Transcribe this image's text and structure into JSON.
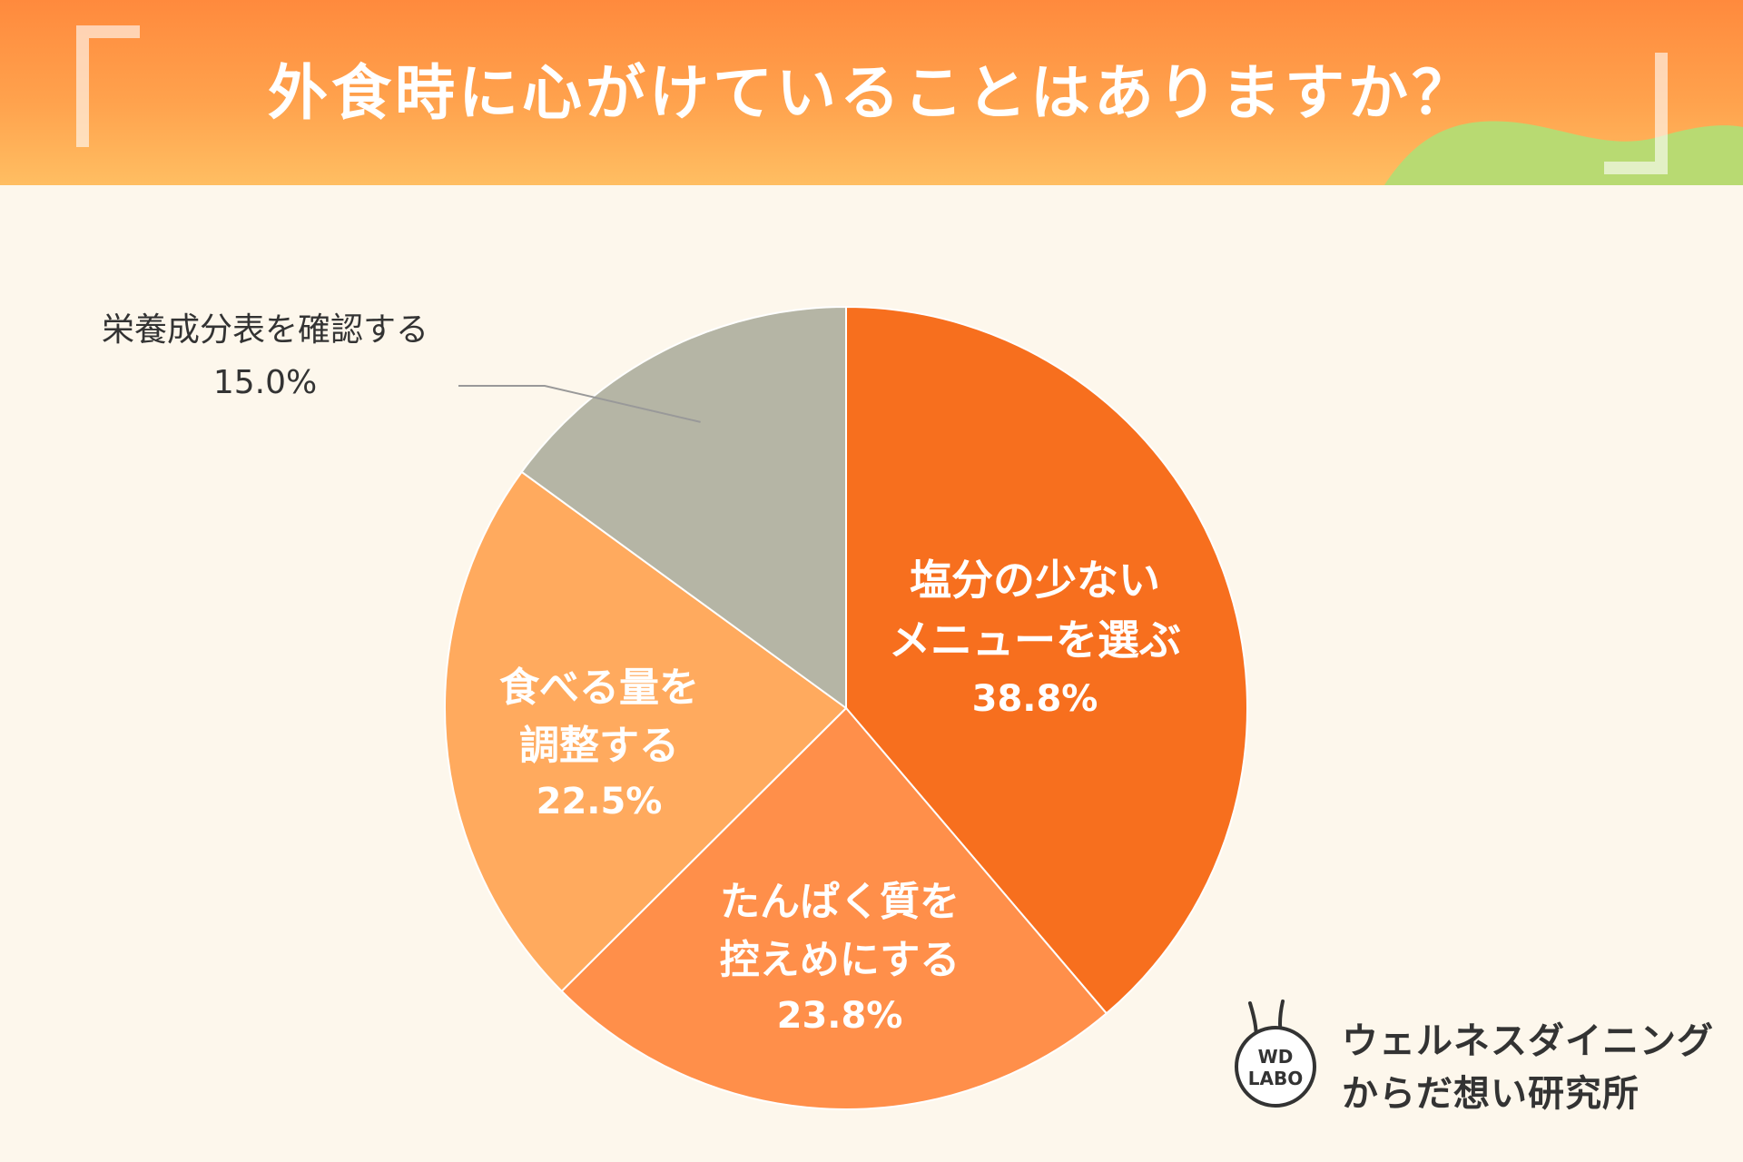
{
  "header": {
    "title": "外食時に心がけていることはありますか？"
  },
  "colors": {
    "slices": [
      "#F76F1E",
      "#FF8F4A",
      "#FFAA5E",
      "#B5B5A5"
    ],
    "label_inside": "#FFFFFF",
    "label_outside": "#333333",
    "leader": "#999999"
  },
  "chart_data": {
    "type": "pie",
    "title": "外食時に心がけていることはありますか？",
    "start": "12 o'clock, clockwise",
    "slices": [
      {
        "label_lines": [
          "塩分の少ない",
          "メニューを選ぶ"
        ],
        "value": 38.8,
        "value_text": "38.8%"
      },
      {
        "label_lines": [
          "たんぱく質を",
          "控えめにする"
        ],
        "value": 23.8,
        "value_text": "23.8%"
      },
      {
        "label_lines": [
          "食べる量を",
          "調整する"
        ],
        "value": 22.5,
        "value_text": "22.5%"
      },
      {
        "label_lines": [
          "栄養成分表を確認する"
        ],
        "value": 15.0,
        "value_text": "15.0%"
      }
    ]
  },
  "logo": {
    "mark_line1": "WD",
    "mark_line2": "LABO",
    "name_line1": "ウェルネスダイニング",
    "name_line2": "からだ想い研究所"
  }
}
